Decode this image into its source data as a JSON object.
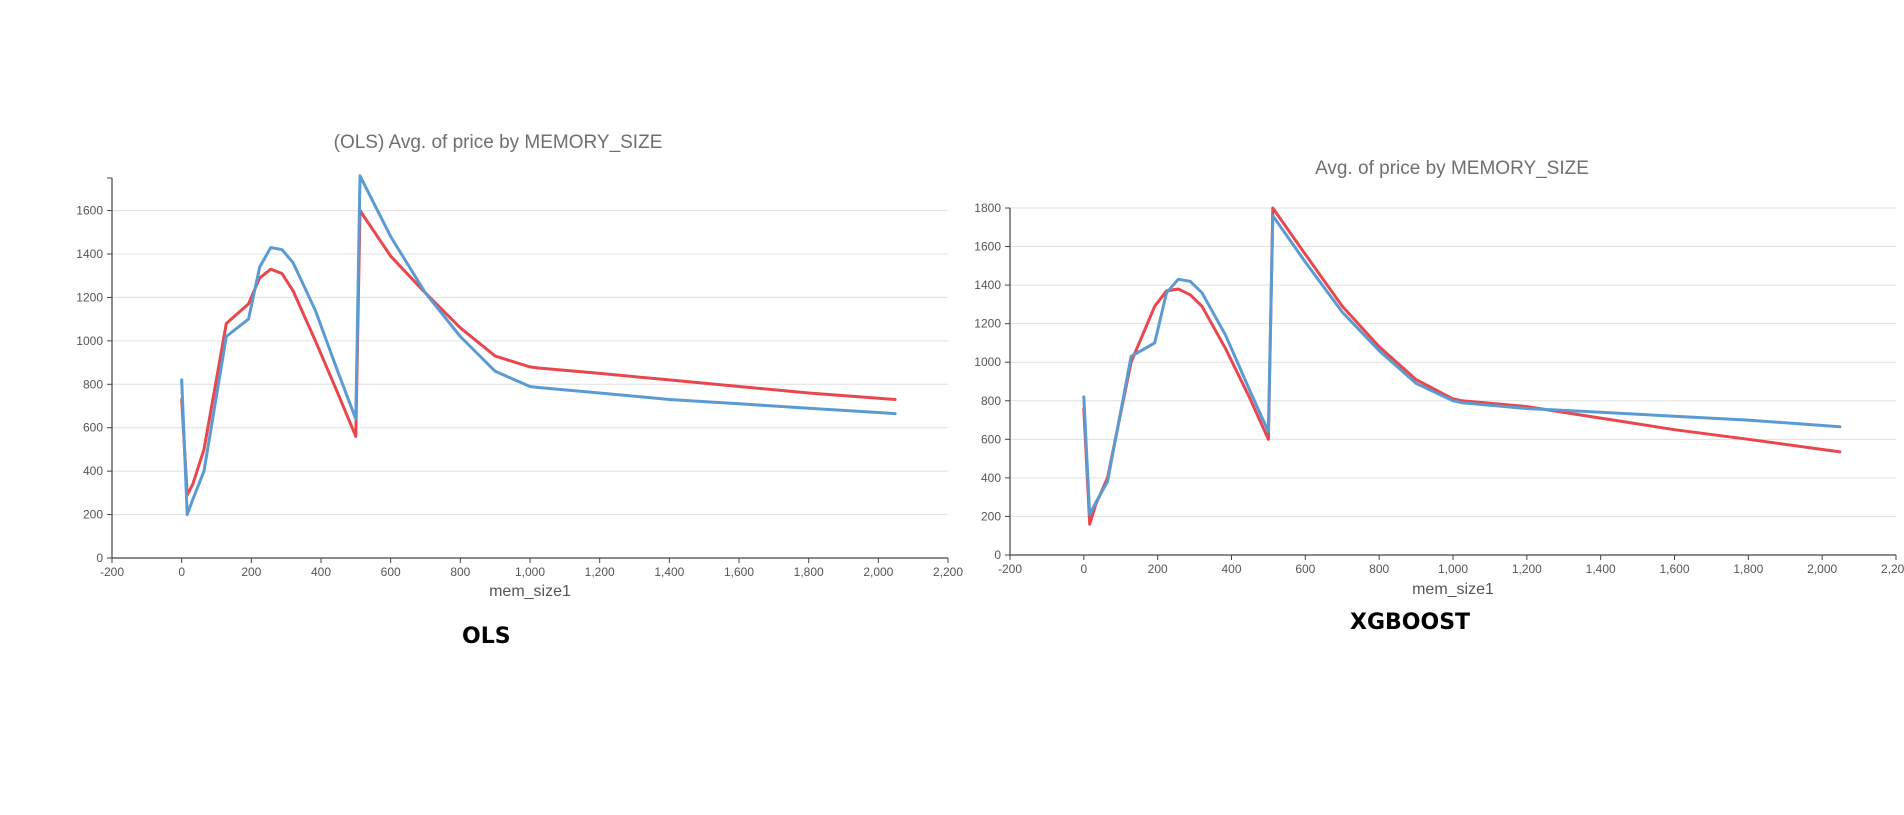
{
  "chart_data": [
    {
      "type": "line",
      "title": "(OLS) Avg. of price by MEMORY_SIZE",
      "xlabel": "mem_size1",
      "ylabel": "",
      "xlim": [
        -200,
        2200
      ],
      "ylim": [
        0,
        1750
      ],
      "xticks": [
        -200,
        0,
        200,
        400,
        600,
        800,
        1000,
        1200,
        1400,
        1600,
        1800,
        2000,
        2200
      ],
      "xtick_labels": [
        "-200",
        "0",
        "200",
        "400",
        "600",
        "800",
        "1,000",
        "1,200",
        "1,400",
        "1,600",
        "1,800",
        "2,000",
        "2,200"
      ],
      "yticks": [
        0,
        200,
        400,
        600,
        800,
        1000,
        1200,
        1400,
        1600
      ],
      "ytick_labels": [
        "0",
        "200",
        "400",
        "600",
        "800",
        "1000",
        "1200",
        "1400",
        "1600"
      ],
      "grid": true,
      "caption": "OLS",
      "series": [
        {
          "color": "#e8474d",
          "x": [
            0,
            16,
            32,
            64,
            128,
            192,
            224,
            256,
            288,
            320,
            384,
            448,
            500,
            512,
            600,
            700,
            800,
            900,
            1000,
            1024,
            1200,
            1400,
            1600,
            1800,
            2048
          ],
          "y": [
            730,
            290,
            340,
            500,
            1080,
            1170,
            1290,
            1330,
            1310,
            1230,
            1000,
            760,
            560,
            1600,
            1390,
            1220,
            1060,
            930,
            880,
            875,
            850,
            820,
            790,
            760,
            730
          ]
        },
        {
          "color": "#5b9bd1",
          "x": [
            0,
            16,
            32,
            64,
            128,
            192,
            224,
            256,
            288,
            320,
            384,
            448,
            500,
            512,
            600,
            700,
            800,
            900,
            1000,
            1024,
            1200,
            1400,
            1600,
            1800,
            2048
          ],
          "y": [
            820,
            200,
            270,
            400,
            1020,
            1100,
            1340,
            1430,
            1420,
            1360,
            1140,
            860,
            640,
            1760,
            1480,
            1220,
            1020,
            860,
            790,
            785,
            760,
            730,
            710,
            690,
            665
          ]
        }
      ]
    },
    {
      "type": "line",
      "title": "Avg. of price by MEMORY_SIZE",
      "xlabel": "mem_size1",
      "ylabel": "",
      "xlim": [
        -200,
        2200
      ],
      "ylim": [
        0,
        1800
      ],
      "xticks": [
        -200,
        0,
        200,
        400,
        600,
        800,
        1000,
        1200,
        1400,
        1600,
        1800,
        2000,
        2200
      ],
      "xtick_labels": [
        "-200",
        "0",
        "200",
        "400",
        "600",
        "800",
        "1,000",
        "1,200",
        "1,400",
        "1,600",
        "1,800",
        "2,000",
        "2,200"
      ],
      "yticks": [
        0,
        200,
        400,
        600,
        800,
        1000,
        1200,
        1400,
        1600,
        1800
      ],
      "ytick_labels": [
        "0",
        "200",
        "400",
        "600",
        "800",
        "1000",
        "1200",
        "1400",
        "1600",
        "1800"
      ],
      "grid": true,
      "caption": "XGBOOST",
      "series": [
        {
          "color": "#e8474d",
          "x": [
            0,
            16,
            32,
            64,
            128,
            192,
            224,
            256,
            288,
            320,
            384,
            448,
            500,
            512,
            600,
            700,
            800,
            900,
            1000,
            1024,
            1200,
            1400,
            1600,
            1800,
            2048
          ],
          "y": [
            760,
            160,
            260,
            400,
            1000,
            1290,
            1370,
            1380,
            1350,
            1290,
            1070,
            820,
            600,
            1800,
            1560,
            1290,
            1080,
            910,
            810,
            800,
            770,
            710,
            650,
            600,
            535
          ]
        },
        {
          "color": "#5b9bd1",
          "x": [
            0,
            16,
            32,
            64,
            128,
            192,
            224,
            256,
            288,
            320,
            384,
            448,
            500,
            512,
            600,
            700,
            800,
            900,
            1000,
            1024,
            1200,
            1400,
            1600,
            1800,
            2048
          ],
          "y": [
            820,
            210,
            270,
            380,
            1030,
            1100,
            1360,
            1430,
            1420,
            1360,
            1140,
            860,
            640,
            1760,
            1520,
            1260,
            1060,
            890,
            800,
            790,
            760,
            740,
            720,
            700,
            665
          ]
        }
      ]
    }
  ]
}
